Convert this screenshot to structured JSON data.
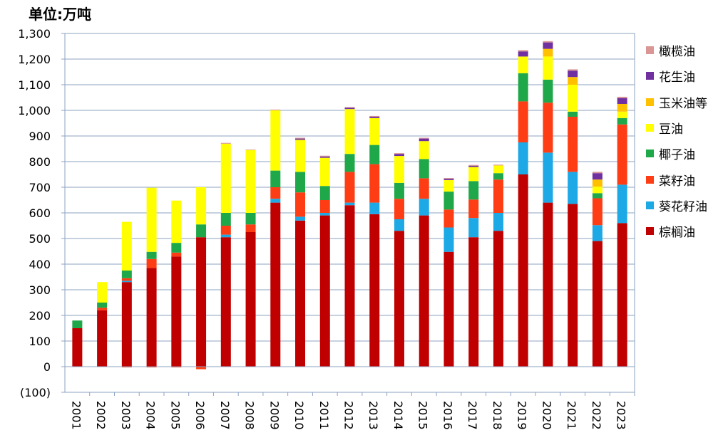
{
  "unit_label": "单位:万吨",
  "chart_data": {
    "type": "bar",
    "stacked": true,
    "title": "",
    "xlabel": "",
    "ylabel": "单位:万吨",
    "ylim": [
      -100,
      1300
    ],
    "yticks": [
      -100,
      0,
      100,
      200,
      300,
      400,
      500,
      600,
      700,
      800,
      900,
      1000,
      1100,
      1200,
      1300
    ],
    "ytick_labels": [
      "(100)",
      "0",
      "100",
      "200",
      "300",
      "400",
      "500",
      "600",
      "700",
      "800",
      "900",
      "1,000",
      "1,100",
      "1,200",
      "1,300"
    ],
    "grid": true,
    "legend_position": "right",
    "categories": [
      "2001",
      "2002",
      "2003",
      "2004",
      "2005",
      "2006",
      "2007",
      "2008",
      "2009",
      "2010",
      "2011",
      "2012",
      "2013",
      "2014",
      "2015",
      "2016",
      "2017",
      "2018",
      "2019",
      "2020",
      "2021",
      "2022",
      "2023"
    ],
    "series": [
      {
        "name": "棕榈油",
        "color": "#C00000",
        "values": [
          150,
          220,
          330,
          385,
          430,
          505,
          505,
          525,
          640,
          570,
          590,
          630,
          595,
          530,
          590,
          448,
          505,
          530,
          750,
          640,
          635,
          490,
          560
        ]
      },
      {
        "name": "葵花籽油",
        "color": "#1CA9E6",
        "values": [
          0,
          0,
          5,
          0,
          0,
          0,
          10,
          0,
          15,
          15,
          10,
          10,
          45,
          45,
          65,
          95,
          75,
          70,
          125,
          195,
          125,
          62,
          150
        ]
      },
      {
        "name": "菜籽油",
        "color": "#FF3D14",
        "values": [
          0,
          10,
          10,
          35,
          15,
          0,
          35,
          30,
          45,
          95,
          50,
          120,
          150,
          80,
          80,
          70,
          72,
          130,
          160,
          195,
          215,
          105,
          235
        ]
      },
      {
        "name": "椰子油",
        "color": "#1FA84A",
        "values": [
          30,
          20,
          30,
          28,
          38,
          50,
          50,
          45,
          65,
          80,
          55,
          70,
          75,
          62,
          75,
          70,
          72,
          25,
          110,
          90,
          20,
          20,
          25
        ]
      },
      {
        "name": "豆油",
        "color": "#FFFF00",
        "values": [
          0,
          80,
          190,
          250,
          165,
          145,
          270,
          245,
          235,
          125,
          110,
          175,
          105,
          105,
          70,
          45,
          55,
          30,
          65,
          90,
          105,
          25,
          25
        ]
      },
      {
        "name": "玉米油等",
        "color": "#FFC000",
        "values": [
          0,
          0,
          0,
          0,
          0,
          0,
          0,
          0,
          0,
          0,
          0,
          0,
          0,
          0,
          0,
          0,
          0,
          0,
          0,
          30,
          30,
          28,
          30
        ]
      },
      {
        "name": "花生油",
        "color": "#7030A0",
        "values": [
          0,
          0,
          0,
          0,
          0,
          0,
          0,
          0,
          0,
          5,
          5,
          5,
          5,
          8,
          10,
          5,
          5,
          0,
          20,
          25,
          25,
          25,
          23
        ]
      },
      {
        "name": "橄榄油",
        "color": "#D99694",
        "values": [
          0,
          0,
          0,
          0,
          0,
          0,
          3,
          2,
          3,
          3,
          3,
          3,
          3,
          3,
          3,
          3,
          3,
          3,
          5,
          5,
          5,
          5,
          5
        ]
      }
    ],
    "negatives": {
      "values": [
        0,
        0,
        -3,
        -3,
        -3,
        -10,
        0,
        0,
        0,
        0,
        0,
        0,
        0,
        0,
        0,
        0,
        0,
        0,
        0,
        0,
        0,
        0,
        0
      ],
      "color": "#FF3D14"
    }
  }
}
